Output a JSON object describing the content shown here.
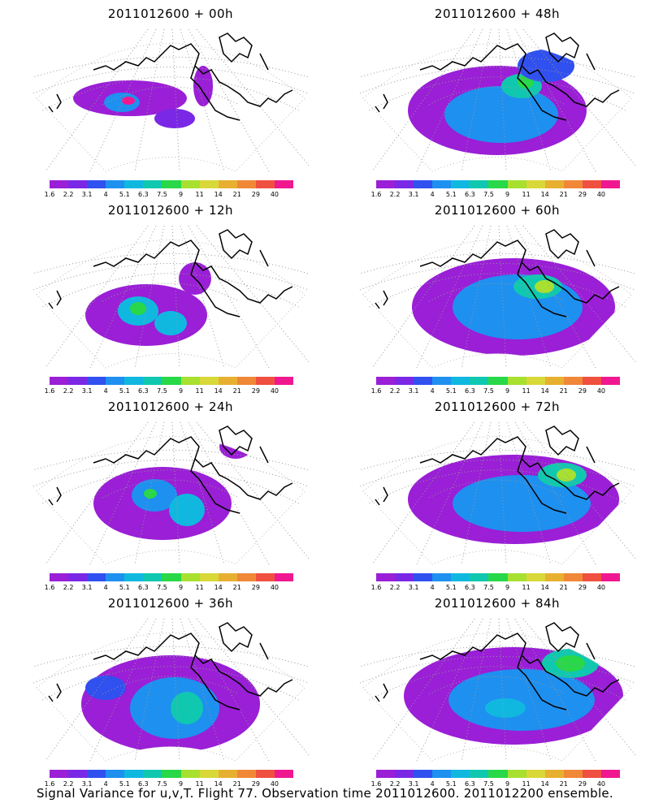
{
  "panels": [
    {
      "title": "2011012600 + 00h"
    },
    {
      "title": "2011012600 + 48h"
    },
    {
      "title": "2011012600 + 12h"
    },
    {
      "title": "2011012600 + 60h"
    },
    {
      "title": "2011012600 + 24h"
    },
    {
      "title": "2011012600 + 72h"
    },
    {
      "title": "2011012600 + 36h"
    },
    {
      "title": "2011012600 + 84h"
    }
  ],
  "colorbar": {
    "labels": [
      "1.6",
      "2.2",
      "3.1",
      "4",
      "5.1",
      "6.3",
      "7.5",
      "9",
      "11",
      "14",
      "21",
      "29",
      "40"
    ],
    "colors": [
      "#9a1fd6",
      "#7a28e6",
      "#3050f0",
      "#1e90f0",
      "#10b8e0",
      "#10c8b0",
      "#28d848",
      "#a8e030",
      "#d8d838",
      "#e8b030",
      "#f08838",
      "#f05040",
      "#f01890"
    ]
  },
  "footer": "Signal Variance for u,v,T. Flight 77. Observation time 2011012600. 2011012200 ensemble."
}
